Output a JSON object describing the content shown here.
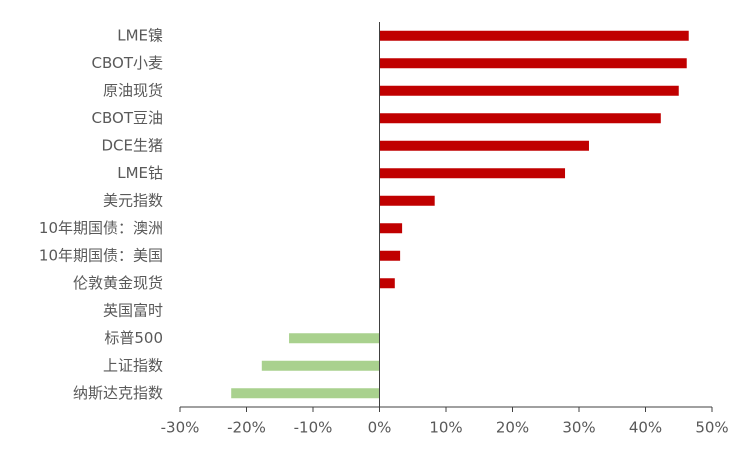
{
  "chart_data": {
    "type": "hbar",
    "categories": [
      "LME镍",
      "CBOT小麦",
      "原油现货",
      "CBOT豆油",
      "DCE生猪",
      "LME钴",
      "美元指数",
      "10年期国债：澳洲",
      "10年期国债：美国",
      "伦敦黄金现货",
      "英国富时",
      "标普500",
      "上证指数",
      "纳斯达克指数"
    ],
    "values": [
      46.5,
      46.2,
      45.0,
      42.3,
      31.5,
      27.9,
      8.3,
      3.4,
      3.1,
      2.3,
      0,
      -13.6,
      -17.7,
      -22.3
    ],
    "positive_color": "#c00000",
    "negative_color": "#a9d18e",
    "xlim": [
      -30,
      50
    ],
    "xticks": [
      {
        "value": -30,
        "label": "-30%"
      },
      {
        "value": -20,
        "label": "-20%"
      },
      {
        "value": -10,
        "label": "-10%"
      },
      {
        "value": 0,
        "label": "0%"
      },
      {
        "value": 10,
        "label": "10%"
      },
      {
        "value": 20,
        "label": "20%"
      },
      {
        "value": 30,
        "label": "30%"
      },
      {
        "value": 40,
        "label": "40%"
      },
      {
        "value": 50,
        "label": "50%"
      }
    ]
  }
}
